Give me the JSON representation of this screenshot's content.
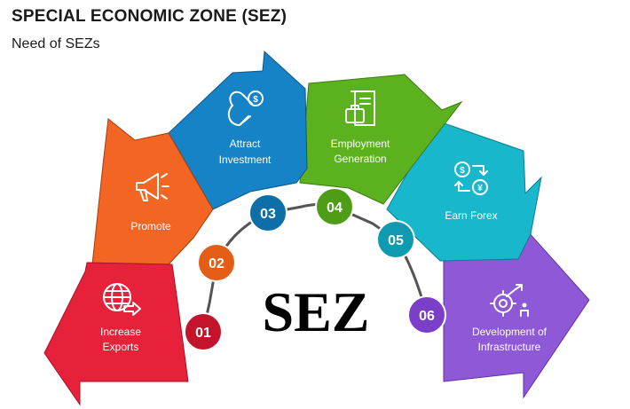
{
  "header": {
    "title": "SPECIAL ECONOMIC ZONE (SEZ)",
    "subtitle": "Need of SEZs"
  },
  "center_label": "SEZ",
  "segments": [
    {
      "number": "01",
      "label_lines": [
        "Increase",
        "Exports"
      ],
      "color": "#e8213a",
      "dark": "#a3122a",
      "icon": "globe-arrow-icon"
    },
    {
      "number": "02",
      "label_lines": [
        "Promote"
      ],
      "color": "#f26522",
      "dark": "#a83c0c",
      "icon": "megaphone-icon"
    },
    {
      "number": "03",
      "label_lines": [
        "Attract",
        "Investment"
      ],
      "color": "#1583c6",
      "dark": "#0c5788",
      "icon": "magnet-dollar-icon"
    },
    {
      "number": "04",
      "label_lines": [
        "Employment",
        "Generation"
      ],
      "color": "#5cb21e",
      "dark": "#3a7a10",
      "icon": "briefcase-document-icon"
    },
    {
      "number": "05",
      "label_lines": [
        "Earn Forex"
      ],
      "color": "#19b7cc",
      "dark": "#0e7d8c",
      "icon": "currency-exchange-icon"
    },
    {
      "number": "06",
      "label_lines": [
        "Development of",
        "Infrastructure"
      ],
      "color": "#8d59d6",
      "dark": "#6130a8",
      "icon": "gear-growth-icon"
    }
  ],
  "number_colors": [
    "#c3142c",
    "#e35d17",
    "#0d6ea8",
    "#4f9c17",
    "#0f9aaf",
    "#7a3ec8"
  ]
}
